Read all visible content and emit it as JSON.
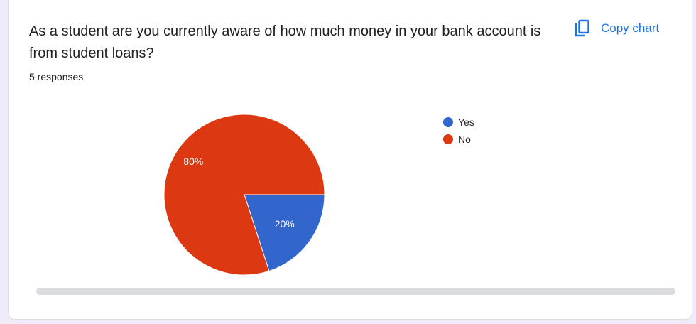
{
  "question": "As a student are you currently aware of how much money in your bank account is from student loans?",
  "responses": "5 responses",
  "copy_label": "Copy chart",
  "copy_icon": "copy-icon",
  "chart_data": {
    "type": "pie",
    "categories": [
      "Yes",
      "No"
    ],
    "values": [
      20,
      80
    ],
    "labels": [
      "20%",
      "80%"
    ],
    "colors": [
      "#3366cc",
      "#dc3912"
    ],
    "legend_position": "right"
  }
}
